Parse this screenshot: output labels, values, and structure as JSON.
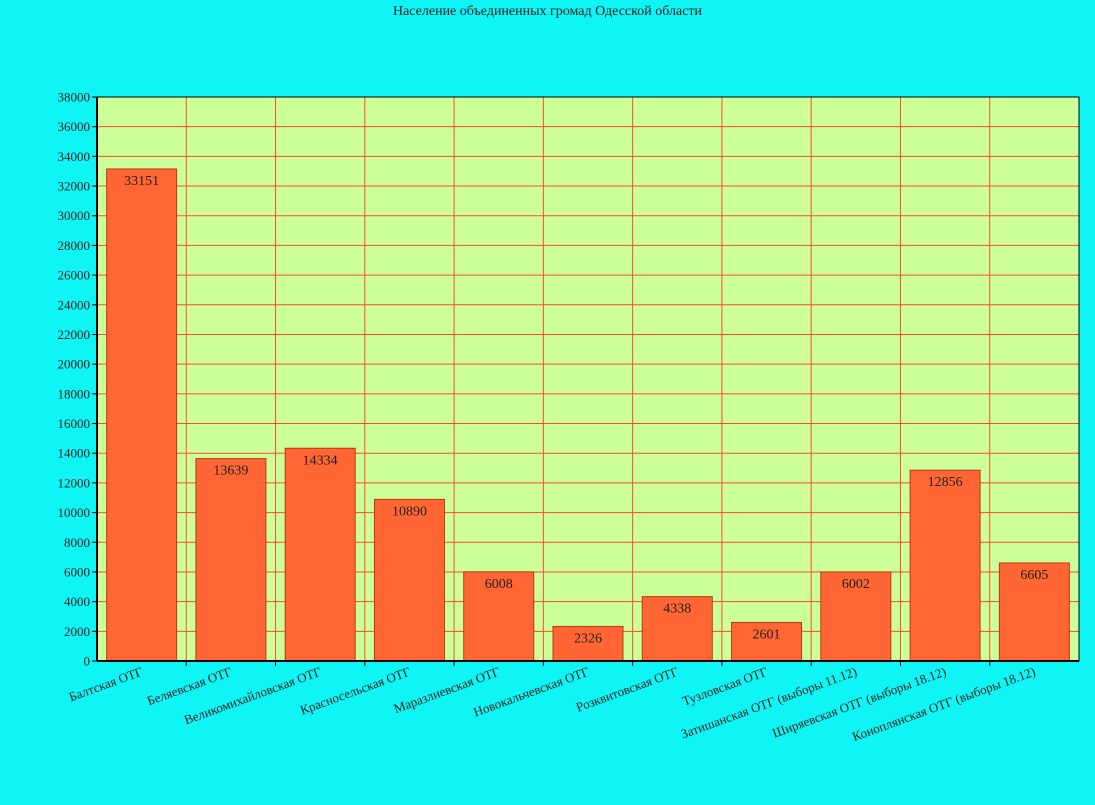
{
  "colors": {
    "page_background": "#0ff5f5",
    "plot_background": "#ccff99",
    "grid": "#ff4a2e",
    "bar_fill": "#ff6633",
    "bar_stroke": "#b83a10",
    "text": "#222222"
  },
  "chart_data": {
    "type": "bar",
    "title": "Население объединенных громад Одесской области",
    "xlabel": "",
    "ylabel": "",
    "ylim": [
      0,
      38000
    ],
    "ytick_step": 2000,
    "grid": true,
    "legend": "none",
    "categories": [
      "Балтская ОТГ",
      "Беляевская ОТГ",
      "Великомихайловская ОТГ",
      "Красносельская ОТГ",
      "Маразлиевская ОТГ",
      "Новокальчевская ОТГ",
      "Розквитовская ОТГ",
      "Тузловская ОТГ",
      "Затишанская ОТГ (выборы 11.12)",
      "Ширяевская ОТГ (выборы 18.12)",
      "Коноплянская ОТГ (выборы 18.12)"
    ],
    "values": [
      33151,
      13639,
      14334,
      10890,
      6008,
      2326,
      4338,
      2601,
      6002,
      12856,
      6605
    ]
  }
}
